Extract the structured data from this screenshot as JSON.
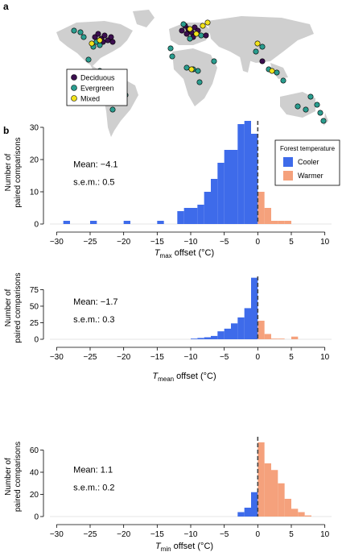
{
  "panel_a": {
    "label": "a",
    "legend": [
      {
        "label": "Deciduous",
        "color": "#3b0f4f"
      },
      {
        "label": "Evergreen",
        "color": "#2a9d8f"
      },
      {
        "label": "Mixed",
        "color": "#f2e31c"
      }
    ],
    "land_color": "#cfcfcf"
  },
  "panel_b": {
    "label": "b",
    "legend_title": "Forest temperature",
    "legend": [
      {
        "label": "Cooler",
        "color": "#3e6bea"
      },
      {
        "label": "Warmer",
        "color": "#f5a17c"
      }
    ]
  },
  "chart_data": [
    {
      "type": "bar",
      "ylabel": "Number of paired comparisons",
      "xlabel_main": "T",
      "xlabel_sub": "max",
      "xlabel_rest": " offset (°C)",
      "xlim": [
        -31,
        11
      ],
      "ylim": [
        0,
        32
      ],
      "xticks": [
        -30,
        -25,
        -20,
        -15,
        -10,
        -5,
        0,
        5,
        10
      ],
      "yticks": [
        0,
        10,
        20,
        30
      ],
      "stats": [
        "Mean: −4.1",
        "s.e.m.: 0.5"
      ],
      "bin_width": 1,
      "bins": [
        [
          -29,
          1
        ],
        [
          -25,
          1
        ],
        [
          -20,
          1
        ],
        [
          -15,
          1
        ],
        [
          -12,
          4
        ],
        [
          -11,
          5
        ],
        [
          -10,
          5
        ],
        [
          -9,
          6
        ],
        [
          -8,
          10
        ],
        [
          -7,
          14
        ],
        [
          -6,
          19
        ],
        [
          -5,
          23
        ],
        [
          -4,
          23
        ],
        [
          -3,
          31
        ],
        [
          -2,
          32
        ],
        [
          -1,
          28
        ],
        [
          0,
          10
        ],
        [
          1,
          5
        ],
        [
          2,
          1
        ],
        [
          3,
          1
        ],
        [
          4,
          1
        ]
      ]
    },
    {
      "type": "bar",
      "ylabel": "Number of paired comparisons",
      "xlabel_main": "T",
      "xlabel_sub": "mean",
      "xlabel_rest": " offset (°C)",
      "xlim": [
        -31,
        11
      ],
      "ylim": [
        0,
        95
      ],
      "xticks": [
        -30,
        -25,
        -20,
        -15,
        -10,
        -5,
        0,
        5,
        10
      ],
      "yticks": [
        0,
        25,
        50,
        75
      ],
      "stats": [
        "Mean: −1.7",
        "s.e.m.: 0.3"
      ],
      "bin_width": 1,
      "bins": [
        [
          -10,
          1
        ],
        [
          -9,
          2
        ],
        [
          -8,
          3
        ],
        [
          -7,
          5
        ],
        [
          -6,
          12
        ],
        [
          -5,
          16
        ],
        [
          -4,
          24
        ],
        [
          -3,
          33
        ],
        [
          -2,
          47
        ],
        [
          -1,
          93
        ],
        [
          0,
          28
        ],
        [
          1,
          8
        ],
        [
          2,
          1
        ],
        [
          3,
          1
        ],
        [
          5,
          4
        ]
      ]
    },
    {
      "type": "bar",
      "ylabel": "Number of paired comparisons",
      "xlabel_main": "T",
      "xlabel_sub": "min",
      "xlabel_rest": " offset (°C)",
      "xlim": [
        -31,
        11
      ],
      "ylim": [
        0,
        72
      ],
      "xticks": [
        -30,
        -25,
        -20,
        -15,
        -10,
        -5,
        0,
        5,
        10
      ],
      "yticks": [
        0,
        20,
        40,
        60
      ],
      "stats": [
        "Mean: 1.1",
        "s.e.m.: 0.2"
      ],
      "bin_width": 1,
      "bins": [
        [
          -3,
          4
        ],
        [
          -2,
          8
        ],
        [
          -1,
          22
        ],
        [
          0,
          67
        ],
        [
          1,
          48
        ],
        [
          2,
          42
        ],
        [
          3,
          30
        ],
        [
          4,
          16
        ],
        [
          5,
          7
        ],
        [
          6,
          4
        ],
        [
          7,
          1
        ]
      ]
    }
  ]
}
